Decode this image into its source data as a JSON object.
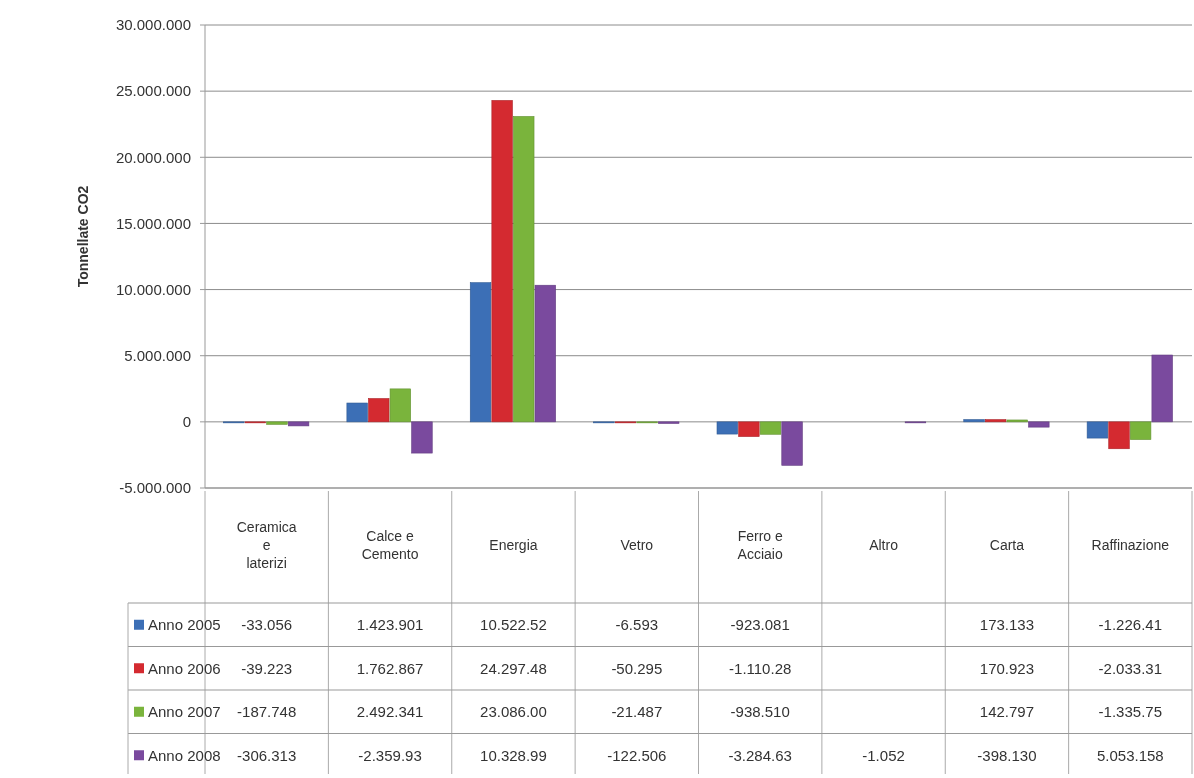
{
  "chart_data": {
    "type": "bar",
    "ylabel": "Tonnellate CO2",
    "categories": [
      "Ceramica e laterizi",
      "Calce e Cemento",
      "Energia",
      "Vetro",
      "Ferro e Acciaio",
      "Altro",
      "Carta",
      "Raffinazione"
    ],
    "series": [
      {
        "name": "Anno 2005",
        "color": "#3c6fb6",
        "values": [
          -33056,
          1423901,
          10522520,
          -6593,
          -923081,
          null,
          173133,
          -1226410
        ],
        "value_labels": [
          "-33.056",
          "1.423.901",
          "10.522.52",
          "-6.593",
          "-923.081",
          null,
          "173.133",
          "-1.226.41"
        ]
      },
      {
        "name": "Anno 2006",
        "color": "#d42a30",
        "values": [
          -39223,
          1762867,
          24297480,
          -50295,
          -1110280,
          null,
          170923,
          -2033310
        ],
        "value_labels": [
          "-39.223",
          "1.762.867",
          "24.297.48",
          "-50.295",
          "-1.110.28",
          null,
          "170.923",
          "-2.033.31"
        ]
      },
      {
        "name": "Anno 2007",
        "color": "#7ab43c",
        "values": [
          -187748,
          2492341,
          23086000,
          -21487,
          -938510,
          null,
          142797,
          -1335750
        ],
        "value_labels": [
          "-187.748",
          "2.492.341",
          "23.086.00",
          "-21.487",
          "-938.510",
          null,
          "142.797",
          "-1.335.75"
        ]
      },
      {
        "name": "Anno 2008",
        "color": "#7a4a9e",
        "values": [
          -306313,
          -2359930,
          10328990,
          -122506,
          -3284630,
          -1052,
          -398130,
          5053158
        ],
        "value_labels": [
          "-306.313",
          "-2.359.93",
          "10.328.99",
          "-122.506",
          "-3.284.63",
          "-1.052",
          "-398.130",
          "5.053.158"
        ]
      }
    ],
    "ylim": [
      -5000000,
      30000000
    ],
    "yticks": [
      {
        "value": -5000000,
        "label": "-5.000.000"
      },
      {
        "value": 0,
        "label": "0"
      },
      {
        "value": 5000000,
        "label": "5.000.000"
      },
      {
        "value": 10000000,
        "label": "10.000.000"
      },
      {
        "value": 15000000,
        "label": "15.000.000"
      },
      {
        "value": 20000000,
        "label": "20.000.000"
      },
      {
        "value": 25000000,
        "label": "25.000.000"
      },
      {
        "value": 30000000,
        "label": "30.000.000"
      }
    ],
    "grid": "y",
    "legend": "bottom"
  }
}
